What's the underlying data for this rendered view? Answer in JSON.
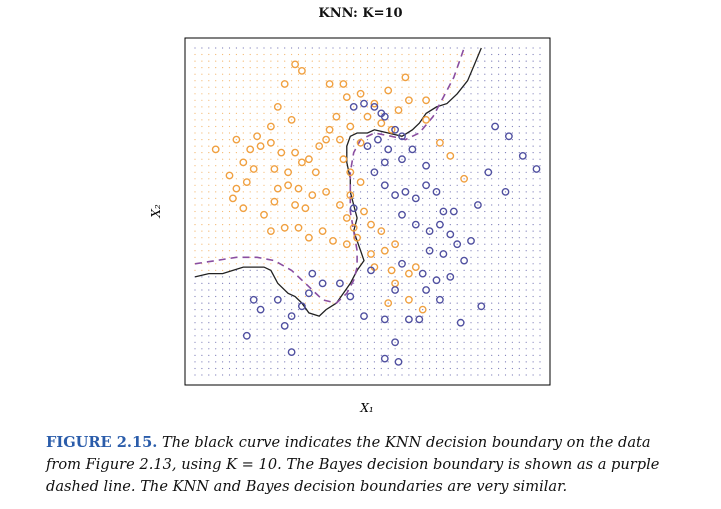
{
  "chart_data": {
    "type": "scatter",
    "title": "KNN: K=10",
    "xlabel": "X₁",
    "ylabel": "X₂",
    "xlim": [
      0,
      1
    ],
    "ylim": [
      0,
      1
    ],
    "grid": "dotted background colored by predicted class",
    "legend": "none",
    "series": [
      {
        "color": "#f0a040",
        "points": [
          [
            0.29,
            0.95
          ],
          [
            0.31,
            0.93
          ],
          [
            0.39,
            0.89
          ],
          [
            0.43,
            0.89
          ],
          [
            0.44,
            0.85
          ],
          [
            0.48,
            0.86
          ],
          [
            0.56,
            0.87
          ],
          [
            0.61,
            0.91
          ],
          [
            0.62,
            0.84
          ],
          [
            0.67,
            0.84
          ],
          [
            0.67,
            0.78
          ],
          [
            0.71,
            0.71
          ],
          [
            0.26,
            0.89
          ],
          [
            0.24,
            0.82
          ],
          [
            0.28,
            0.78
          ],
          [
            0.22,
            0.76
          ],
          [
            0.18,
            0.73
          ],
          [
            0.22,
            0.71
          ],
          [
            0.19,
            0.7
          ],
          [
            0.12,
            0.72
          ],
          [
            0.06,
            0.69
          ],
          [
            0.16,
            0.69
          ],
          [
            0.14,
            0.65
          ],
          [
            0.17,
            0.63
          ],
          [
            0.1,
            0.61
          ],
          [
            0.15,
            0.59
          ],
          [
            0.12,
            0.57
          ],
          [
            0.11,
            0.54
          ],
          [
            0.14,
            0.51
          ],
          [
            0.23,
            0.53
          ],
          [
            0.29,
            0.52
          ],
          [
            0.32,
            0.51
          ],
          [
            0.34,
            0.55
          ],
          [
            0.38,
            0.56
          ],
          [
            0.35,
            0.62
          ],
          [
            0.31,
            0.65
          ],
          [
            0.27,
            0.62
          ],
          [
            0.23,
            0.63
          ],
          [
            0.25,
            0.68
          ],
          [
            0.29,
            0.68
          ],
          [
            0.33,
            0.66
          ],
          [
            0.36,
            0.7
          ],
          [
            0.39,
            0.75
          ],
          [
            0.42,
            0.72
          ],
          [
            0.45,
            0.76
          ],
          [
            0.48,
            0.71
          ],
          [
            0.5,
            0.79
          ],
          [
            0.52,
            0.83
          ],
          [
            0.54,
            0.77
          ],
          [
            0.57,
            0.75
          ],
          [
            0.59,
            0.81
          ],
          [
            0.43,
            0.66
          ],
          [
            0.45,
            0.62
          ],
          [
            0.48,
            0.59
          ],
          [
            0.45,
            0.55
          ],
          [
            0.42,
            0.52
          ],
          [
            0.44,
            0.48
          ],
          [
            0.46,
            0.45
          ],
          [
            0.49,
            0.5
          ],
          [
            0.51,
            0.46
          ],
          [
            0.54,
            0.44
          ],
          [
            0.47,
            0.42
          ],
          [
            0.4,
            0.41
          ],
          [
            0.37,
            0.44
          ],
          [
            0.33,
            0.42
          ],
          [
            0.3,
            0.45
          ],
          [
            0.26,
            0.45
          ],
          [
            0.22,
            0.44
          ],
          [
            0.2,
            0.49
          ],
          [
            0.24,
            0.57
          ],
          [
            0.27,
            0.58
          ],
          [
            0.3,
            0.57
          ],
          [
            0.51,
            0.37
          ],
          [
            0.55,
            0.38
          ],
          [
            0.58,
            0.4
          ],
          [
            0.52,
            0.33
          ],
          [
            0.57,
            0.32
          ],
          [
            0.62,
            0.31
          ],
          [
            0.64,
            0.33
          ],
          [
            0.58,
            0.28
          ],
          [
            0.62,
            0.23
          ],
          [
            0.56,
            0.22
          ],
          [
            0.66,
            0.2
          ],
          [
            0.74,
            0.67
          ],
          [
            0.78,
            0.6
          ],
          [
            0.38,
            0.72
          ],
          [
            0.41,
            0.79
          ],
          [
            0.44,
            0.4
          ]
        ]
      },
      {
        "color": "#5050a0",
        "points": [
          [
            0.46,
            0.82
          ],
          [
            0.49,
            0.83
          ],
          [
            0.52,
            0.82
          ],
          [
            0.55,
            0.79
          ],
          [
            0.58,
            0.75
          ],
          [
            0.6,
            0.73
          ],
          [
            0.56,
            0.69
          ],
          [
            0.53,
            0.72
          ],
          [
            0.5,
            0.7
          ],
          [
            0.55,
            0.65
          ],
          [
            0.6,
            0.66
          ],
          [
            0.63,
            0.69
          ],
          [
            0.67,
            0.64
          ],
          [
            0.52,
            0.62
          ],
          [
            0.55,
            0.58
          ],
          [
            0.58,
            0.55
          ],
          [
            0.61,
            0.56
          ],
          [
            0.64,
            0.54
          ],
          [
            0.67,
            0.58
          ],
          [
            0.7,
            0.56
          ],
          [
            0.72,
            0.5
          ],
          [
            0.6,
            0.49
          ],
          [
            0.64,
            0.46
          ],
          [
            0.68,
            0.44
          ],
          [
            0.71,
            0.46
          ],
          [
            0.74,
            0.43
          ],
          [
            0.76,
            0.4
          ],
          [
            0.8,
            0.41
          ],
          [
            0.75,
            0.5
          ],
          [
            0.87,
            0.76
          ],
          [
            0.91,
            0.73
          ],
          [
            0.95,
            0.67
          ],
          [
            0.99,
            0.63
          ],
          [
            0.85,
            0.62
          ],
          [
            0.9,
            0.56
          ],
          [
            0.82,
            0.52
          ],
          [
            0.78,
            0.35
          ],
          [
            0.74,
            0.3
          ],
          [
            0.7,
            0.29
          ],
          [
            0.67,
            0.26
          ],
          [
            0.71,
            0.23
          ],
          [
            0.66,
            0.31
          ],
          [
            0.6,
            0.34
          ],
          [
            0.58,
            0.26
          ],
          [
            0.62,
            0.17
          ],
          [
            0.65,
            0.17
          ],
          [
            0.55,
            0.17
          ],
          [
            0.49,
            0.18
          ],
          [
            0.45,
            0.24
          ],
          [
            0.42,
            0.28
          ],
          [
            0.34,
            0.31
          ],
          [
            0.37,
            0.28
          ],
          [
            0.33,
            0.25
          ],
          [
            0.31,
            0.21
          ],
          [
            0.28,
            0.18
          ],
          [
            0.24,
            0.23
          ],
          [
            0.26,
            0.15
          ],
          [
            0.19,
            0.2
          ],
          [
            0.17,
            0.23
          ],
          [
            0.15,
            0.12
          ],
          [
            0.28,
            0.07
          ],
          [
            0.55,
            0.05
          ],
          [
            0.59,
            0.04
          ],
          [
            0.83,
            0.21
          ],
          [
            0.72,
            0.37
          ],
          [
            0.77,
            0.16
          ],
          [
            0.68,
            0.38
          ],
          [
            0.58,
            0.1
          ],
          [
            0.51,
            0.32
          ],
          [
            0.46,
            0.51
          ],
          [
            0.54,
            0.8
          ]
        ]
      }
    ],
    "boundaries": [
      {
        "name": "KNN decision boundary",
        "color": "#222222",
        "style": "solid",
        "points": [
          [
            0.0,
            0.3
          ],
          [
            0.04,
            0.31
          ],
          [
            0.08,
            0.31
          ],
          [
            0.11,
            0.32
          ],
          [
            0.14,
            0.33
          ],
          [
            0.17,
            0.33
          ],
          [
            0.2,
            0.33
          ],
          [
            0.22,
            0.32
          ],
          [
            0.24,
            0.28
          ],
          [
            0.27,
            0.25
          ],
          [
            0.29,
            0.24
          ],
          [
            0.31,
            0.22
          ],
          [
            0.33,
            0.19
          ],
          [
            0.36,
            0.18
          ],
          [
            0.38,
            0.2
          ],
          [
            0.41,
            0.22
          ],
          [
            0.43,
            0.25
          ],
          [
            0.45,
            0.28
          ],
          [
            0.47,
            0.32
          ],
          [
            0.49,
            0.35
          ],
          [
            0.48,
            0.38
          ],
          [
            0.47,
            0.41
          ],
          [
            0.46,
            0.44
          ],
          [
            0.47,
            0.48
          ],
          [
            0.46,
            0.52
          ],
          [
            0.45,
            0.56
          ],
          [
            0.45,
            0.6
          ],
          [
            0.44,
            0.65
          ],
          [
            0.44,
            0.7
          ],
          [
            0.45,
            0.73
          ],
          [
            0.47,
            0.74
          ],
          [
            0.5,
            0.74
          ],
          [
            0.52,
            0.75
          ],
          [
            0.56,
            0.74
          ],
          [
            0.6,
            0.73
          ],
          [
            0.63,
            0.75
          ],
          [
            0.65,
            0.77
          ],
          [
            0.67,
            0.8
          ],
          [
            0.7,
            0.82
          ],
          [
            0.73,
            0.83
          ],
          [
            0.76,
            0.86
          ],
          [
            0.79,
            0.9
          ],
          [
            0.81,
            0.95
          ],
          [
            0.83,
            1.0
          ]
        ]
      },
      {
        "name": "Bayes decision boundary",
        "color": "#8a4ea0",
        "style": "dashed",
        "points": [
          [
            0.0,
            0.34
          ],
          [
            0.06,
            0.35
          ],
          [
            0.12,
            0.36
          ],
          [
            0.18,
            0.36
          ],
          [
            0.23,
            0.35
          ],
          [
            0.28,
            0.32
          ],
          [
            0.33,
            0.27
          ],
          [
            0.37,
            0.23
          ],
          [
            0.41,
            0.22
          ],
          [
            0.44,
            0.25
          ],
          [
            0.46,
            0.29
          ],
          [
            0.47,
            0.33
          ],
          [
            0.47,
            0.38
          ],
          [
            0.46,
            0.44
          ],
          [
            0.45,
            0.5
          ],
          [
            0.45,
            0.56
          ],
          [
            0.45,
            0.62
          ],
          [
            0.46,
            0.68
          ],
          [
            0.48,
            0.72
          ],
          [
            0.52,
            0.74
          ],
          [
            0.57,
            0.73
          ],
          [
            0.61,
            0.72
          ],
          [
            0.65,
            0.74
          ],
          [
            0.69,
            0.79
          ],
          [
            0.72,
            0.85
          ],
          [
            0.75,
            0.91
          ],
          [
            0.77,
            0.97
          ],
          [
            0.78,
            1.0
          ]
        ]
      }
    ]
  },
  "caption": {
    "label": "FIGURE 2.15.",
    "text": "The black curve indicates the KNN decision boundary on the data from Figure 2.13, using K = 10. The Bayes decision boundary is shown as a purple dashed line. The KNN and Bayes decision boundaries are very similar."
  }
}
